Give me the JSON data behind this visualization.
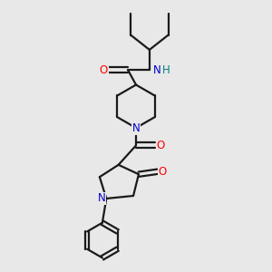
{
  "background_color": "#e8e8e8",
  "bond_color": "#1a1a1a",
  "bond_width": 1.6,
  "atom_colors": {
    "O": "#ff0000",
    "N": "#0000cc",
    "NH": "#008080",
    "H": "#008080",
    "C": "#1a1a1a"
  },
  "font_size_atom": 8.5,
  "figure_size": [
    3.0,
    3.0
  ],
  "dpi": 100,
  "xlim": [
    0,
    10
  ],
  "ylim": [
    0,
    10
  ]
}
